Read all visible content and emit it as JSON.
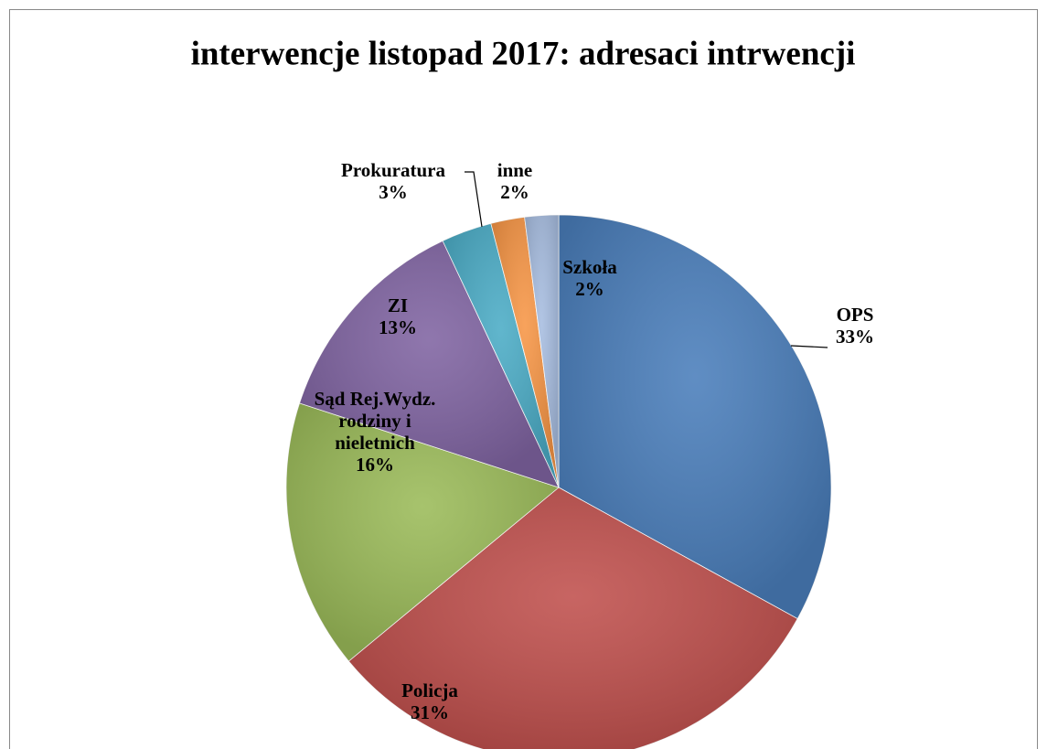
{
  "chart_data": {
    "type": "pie",
    "title": "interwencje listopad 2017: adresaci intrwencji",
    "categories": [
      "OPS",
      "Policja",
      "Sąd Rej.Wydz. rodziny i nieletnich",
      "ZI",
      "Prokuratura",
      "inne",
      "Szkoła"
    ],
    "values": [
      33,
      31,
      16,
      13,
      3,
      2,
      2
    ],
    "value_labels": [
      "33%",
      "31%",
      "16%",
      "13%",
      "3%",
      "2%",
      "2%"
    ],
    "colors": [
      "#4a7ebb",
      "#c0504d",
      "#9bbb59",
      "#8064a2",
      "#4bacc6",
      "#f79646",
      "#a7bde0"
    ]
  }
}
